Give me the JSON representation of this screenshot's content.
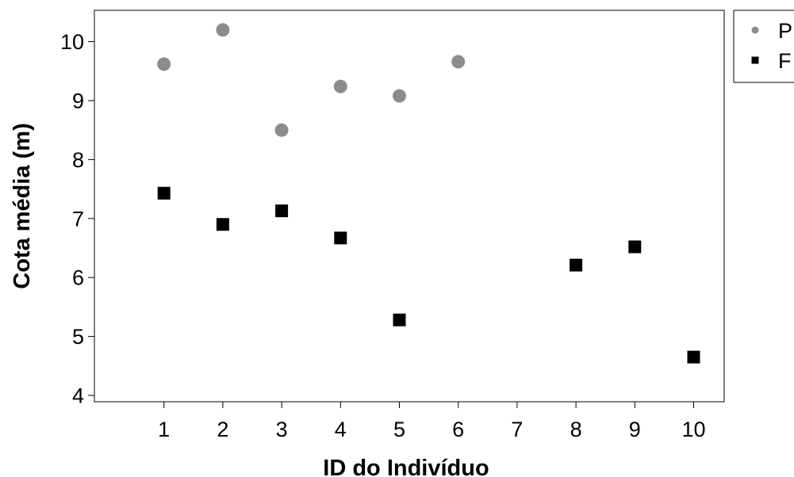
{
  "chart_data": {
    "type": "scatter",
    "title": "",
    "xlabel": "ID do Indivíduo",
    "ylabel": "Cota média (m)",
    "xlim": [
      -0.2,
      10.55
    ],
    "ylim": [
      3.9,
      10.55
    ],
    "xticks": [
      1,
      2,
      3,
      4,
      5,
      6,
      7,
      8,
      9,
      10
    ],
    "yticks": [
      4,
      5,
      6,
      7,
      8,
      9,
      10
    ],
    "grid": false,
    "legend_position": "top-right (outside plot, partially cropped)",
    "series": [
      {
        "name": "P",
        "marker": "circle",
        "color": "#8c8c8c",
        "points": [
          {
            "x": 1,
            "y": 9.62
          },
          {
            "x": 2,
            "y": 10.2
          },
          {
            "x": 3,
            "y": 8.5
          },
          {
            "x": 4,
            "y": 9.24
          },
          {
            "x": 5,
            "y": 9.08
          },
          {
            "x": 6,
            "y": 9.66
          }
        ]
      },
      {
        "name": "F",
        "marker": "square",
        "color": "#000000",
        "points": [
          {
            "x": 1,
            "y": 7.43
          },
          {
            "x": 2,
            "y": 6.9
          },
          {
            "x": 3,
            "y": 7.13
          },
          {
            "x": 4,
            "y": 6.67
          },
          {
            "x": 5,
            "y": 5.28
          },
          {
            "x": 8,
            "y": 6.21
          },
          {
            "x": 9,
            "y": 6.52
          },
          {
            "x": 10,
            "y": 4.65
          }
        ]
      }
    ]
  }
}
